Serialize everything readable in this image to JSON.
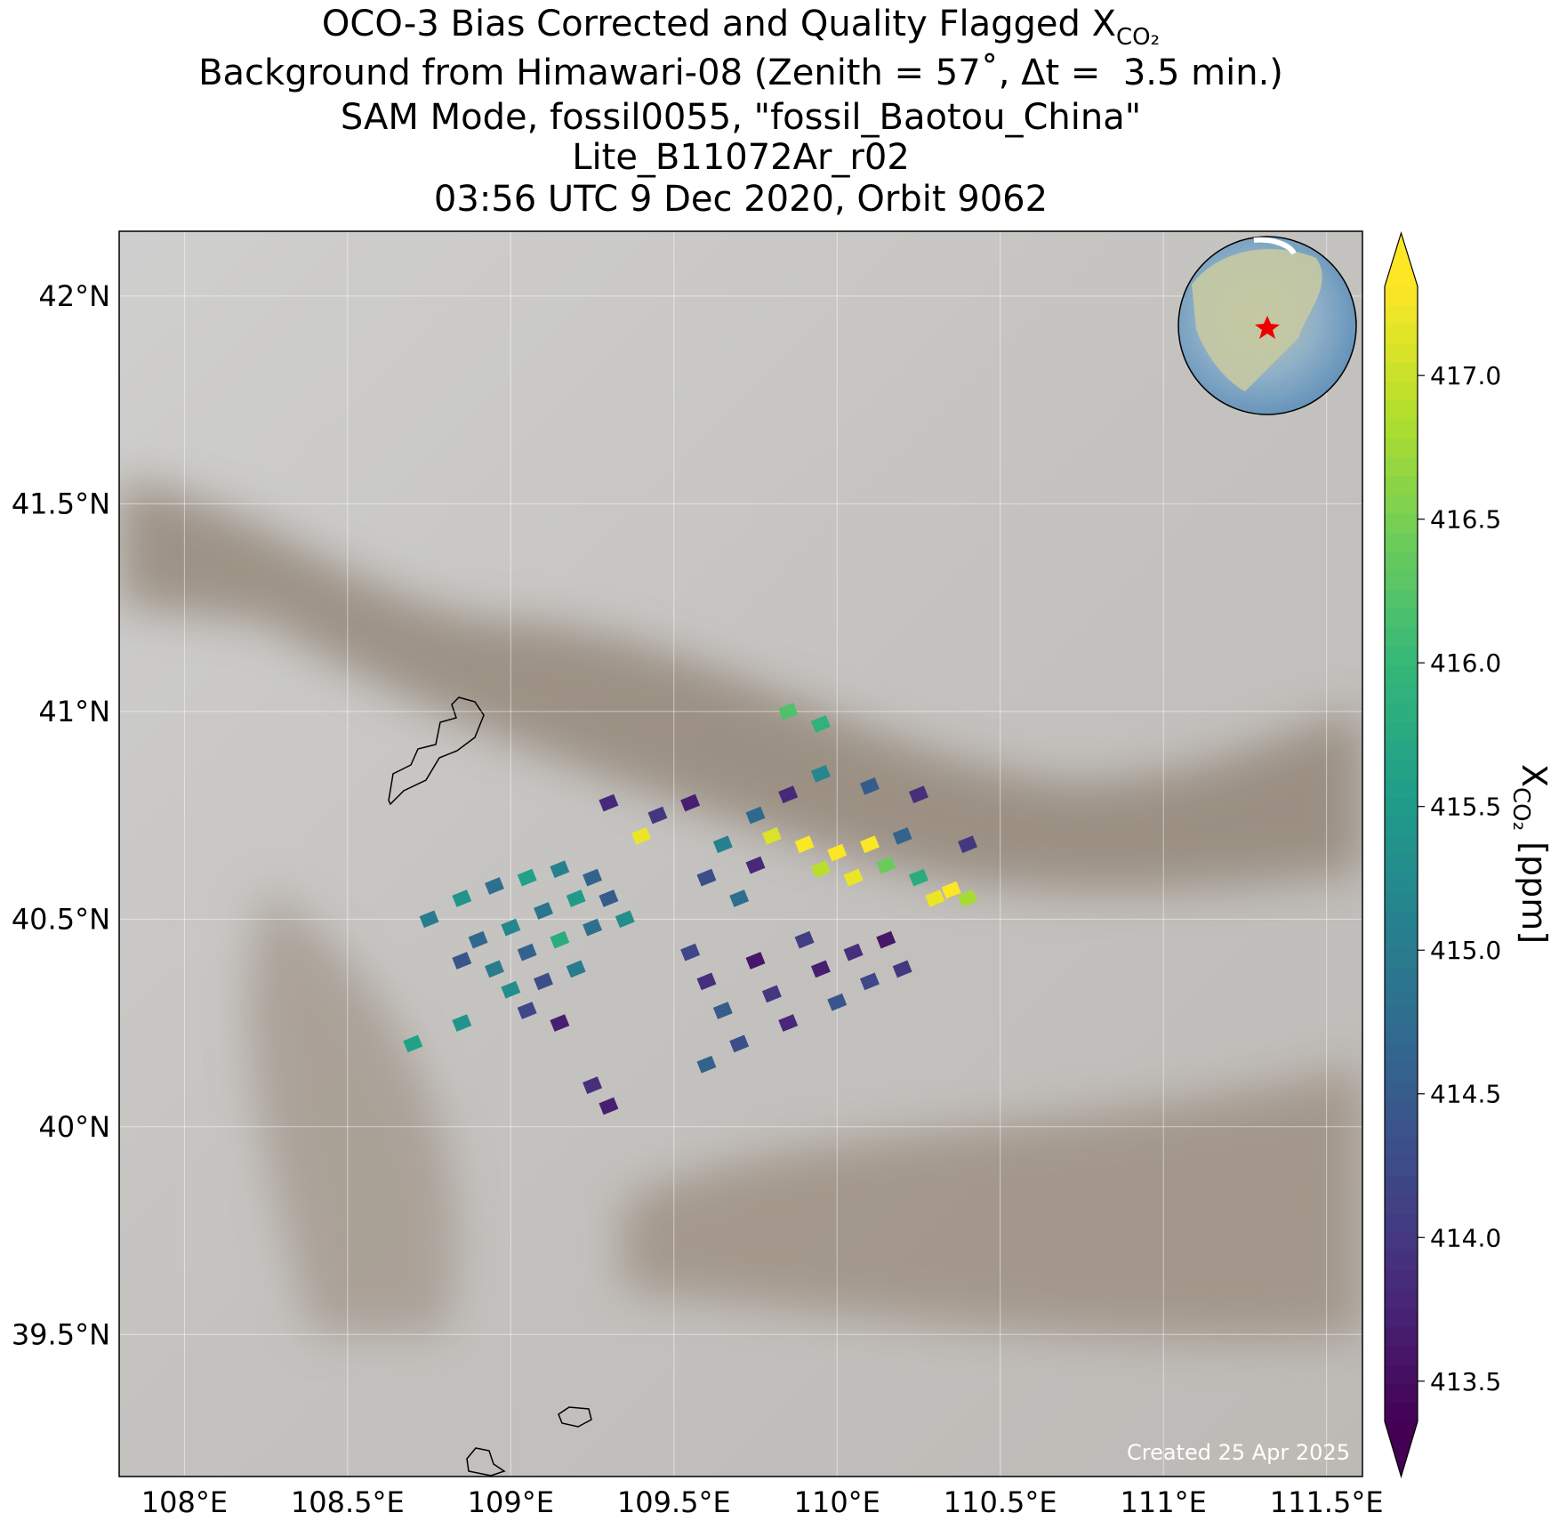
{
  "chart_data": {
    "type": "scatter",
    "title": [
      "OCO-3 Bias Corrected and Quality Flagged X",
      "Background from Himawari-08 (Zenith = 57˚, Δt =  3.5 min.)",
      "SAM Mode, fossil0055, \"fossil_Baotou_China\"",
      "Lite_B11072Ar_r02",
      "03:56 UTC 9 Dec 2020, Orbit 9062"
    ],
    "title_subscript": "CO₂",
    "annotation": "Created 25 Apr 2025",
    "xlim": [
      107.8,
      111.61
    ],
    "ylim": [
      39.158,
      42.156
    ],
    "xticks": [
      {
        "value": 108,
        "label": "108°E"
      },
      {
        "value": 108.5,
        "label": "108.5°E"
      },
      {
        "value": 109,
        "label": "109°E"
      },
      {
        "value": 109.5,
        "label": "109.5°E"
      },
      {
        "value": 110,
        "label": "110°E"
      },
      {
        "value": 110.5,
        "label": "110.5°E"
      },
      {
        "value": 111,
        "label": "111°E"
      },
      {
        "value": 111.5,
        "label": "111.5°E"
      }
    ],
    "yticks": [
      {
        "value": 39.5,
        "label": "39.5°N"
      },
      {
        "value": 40,
        "label": "40°N"
      },
      {
        "value": 40.5,
        "label": "40.5°N"
      },
      {
        "value": 41,
        "label": "41°N"
      },
      {
        "value": 41.5,
        "label": "41.5°N"
      },
      {
        "value": 42,
        "label": "42°N"
      }
    ],
    "grid": true,
    "x": [
      108.75,
      108.85,
      108.95,
      109.05,
      109.15,
      109.25,
      108.9,
      109.0,
      109.1,
      109.2,
      109.3,
      108.85,
      108.95,
      109.05,
      109.15,
      109.25,
      109.35,
      109.0,
      109.1,
      109.2,
      108.7,
      108.85,
      109.05,
      109.15,
      109.3,
      109.45,
      109.55,
      109.4,
      109.55,
      109.6,
      109.65,
      109.7,
      109.75,
      109.8,
      109.85,
      109.9,
      109.95,
      110.0,
      110.05,
      110.1,
      110.15,
      110.2,
      109.7,
      109.6,
      109.75,
      109.65,
      109.8,
      109.9,
      109.95,
      110.0,
      110.05,
      110.1,
      110.15,
      110.2,
      110.25,
      110.3,
      110.35,
      110.4,
      110.25,
      110.1,
      109.95,
      109.85,
      109.75,
      109.95,
      109.85,
      109.3,
      109.25,
      110.4,
      109.6
    ],
    "y": [
      40.5,
      40.55,
      40.58,
      40.6,
      40.62,
      40.6,
      40.45,
      40.48,
      40.52,
      40.55,
      40.55,
      40.4,
      40.38,
      40.42,
      40.45,
      40.48,
      40.5,
      40.33,
      40.35,
      40.38,
      40.2,
      40.25,
      40.28,
      40.25,
      40.78,
      40.75,
      40.78,
      40.7,
      40.42,
      40.35,
      40.28,
      40.2,
      40.4,
      40.32,
      40.25,
      40.45,
      40.38,
      40.3,
      40.42,
      40.35,
      40.45,
      40.38,
      40.55,
      40.6,
      40.63,
      40.68,
      40.7,
      40.68,
      40.62,
      40.66,
      40.6,
      40.68,
      40.63,
      40.7,
      40.6,
      40.55,
      40.57,
      40.55,
      40.8,
      40.82,
      40.85,
      40.8,
      40.75,
      40.97,
      41.0,
      40.05,
      40.1,
      40.68,
      40.15
    ],
    "values": [
      415.0,
      415.4,
      414.8,
      415.6,
      415.1,
      414.6,
      414.7,
      415.2,
      414.9,
      415.5,
      414.5,
      414.4,
      415.0,
      414.6,
      415.8,
      414.8,
      415.3,
      415.3,
      414.3,
      415.0,
      415.6,
      415.4,
      414.2,
      413.7,
      413.8,
      414.0,
      413.7,
      417.2,
      414.2,
      413.9,
      414.5,
      414.3,
      413.6,
      414.0,
      413.8,
      414.1,
      413.7,
      414.4,
      413.9,
      414.2,
      413.6,
      414.0,
      414.8,
      414.3,
      413.8,
      415.1,
      417.1,
      417.3,
      416.9,
      417.3,
      417.2,
      417.3,
      416.4,
      414.6,
      415.8,
      417.2,
      417.3,
      416.8,
      413.9,
      414.5,
      415.2,
      413.8,
      414.7,
      415.9,
      416.2,
      413.7,
      413.9,
      414.0,
      414.6
    ],
    "colorbar": {
      "label": "X",
      "label_subscript": "CO₂",
      "label_unit": " [ppm]",
      "colormap": "viridis",
      "extend": "both",
      "lim": [
        413.36,
        417.31
      ],
      "ticks": [
        {
          "value": 413.5,
          "label": "413.5"
        },
        {
          "value": 414,
          "label": "414.0"
        },
        {
          "value": 414.5,
          "label": "414.5"
        },
        {
          "value": 415,
          "label": "415.0"
        },
        {
          "value": 415.5,
          "label": "415.5"
        },
        {
          "value": 416,
          "label": "416.0"
        },
        {
          "value": 416.5,
          "label": "416.5"
        },
        {
          "value": 417,
          "label": "417.0"
        }
      ]
    }
  }
}
